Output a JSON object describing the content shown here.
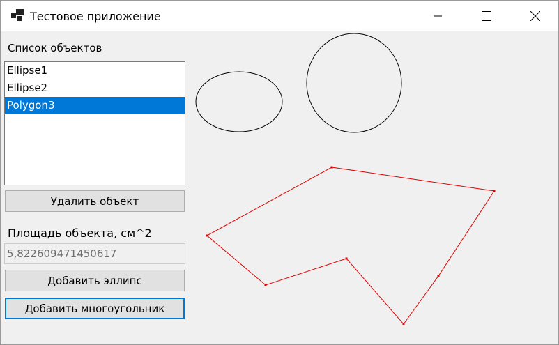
{
  "window": {
    "title": "Тестовое приложение",
    "icons": {
      "app": "app-window-icon",
      "minimize": "minimize-icon",
      "maximize": "maximize-icon",
      "close": "close-icon"
    }
  },
  "objects_panel": {
    "label": "Список объектов",
    "items": [
      {
        "label": "Ellipse1",
        "selected": false
      },
      {
        "label": "Ellipse2",
        "selected": false
      },
      {
        "label": "Polygon3",
        "selected": true
      }
    ],
    "selected_color": "#0078d7"
  },
  "buttons": {
    "delete": "Удалить объект",
    "add_ellipse": "Добавить эллипс",
    "add_polygon": "Добавить многоугольник"
  },
  "area": {
    "label": "Площадь объекта, см^2",
    "value": "5,822609471450617"
  },
  "canvas": {
    "shapes": [
      {
        "name": "Ellipse1",
        "type": "ellipse",
        "stroke": "#000000"
      },
      {
        "name": "Ellipse2",
        "type": "ellipse",
        "stroke": "#000000"
      },
      {
        "name": "Polygon3",
        "type": "polygon",
        "stroke": "#e00000"
      }
    ]
  }
}
